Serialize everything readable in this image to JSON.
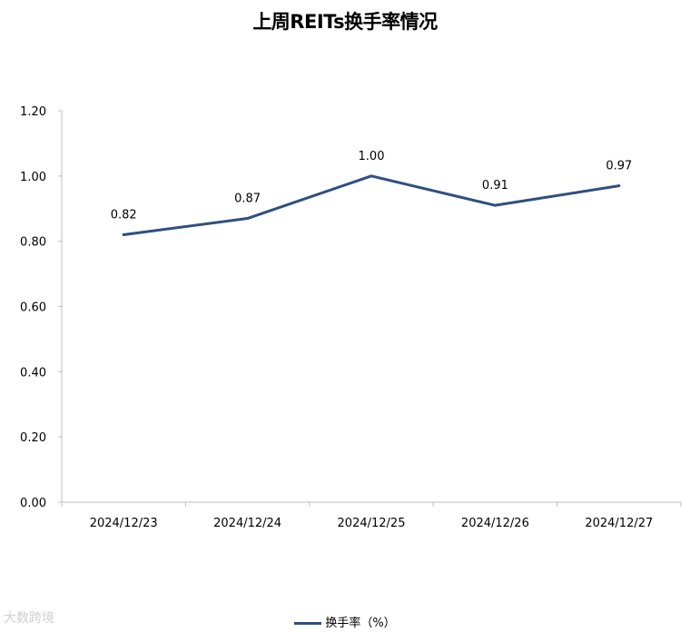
{
  "chart_data": {
    "type": "line",
    "title": "上周REITs换手率情况",
    "categories": [
      "2024/12/23",
      "2024/12/24",
      "2024/12/25",
      "2024/12/26",
      "2024/12/27"
    ],
    "series": [
      {
        "name": "换手率（%）",
        "values": [
          0.82,
          0.87,
          1.0,
          0.91,
          0.97
        ],
        "color": "#2F4F80"
      }
    ],
    "data_labels": [
      "0.82",
      "0.87",
      "1.00",
      "0.91",
      "0.97"
    ],
    "yticks": [
      "0.00",
      "0.20",
      "0.40",
      "0.60",
      "0.80",
      "1.00",
      "1.20"
    ],
    "ylim": [
      0,
      1.2
    ],
    "grid": false,
    "legend_position": "bottom"
  },
  "watermark": "大数跨境"
}
